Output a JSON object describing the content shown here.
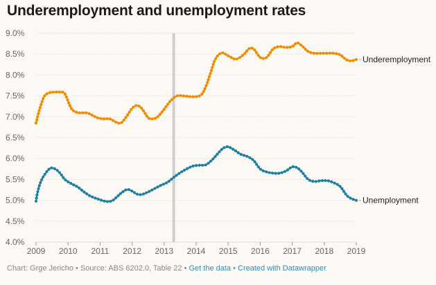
{
  "footer": {
    "prefix": "Chart: Grge Jericho • Source: ABS 6202.0, Table 22 • ",
    "get_data": "Get the data",
    "separator": " • ",
    "created_with": "Created with Datawrapper"
  },
  "colors": {
    "underemployment": "#f08c00",
    "unemployment": "#1d7fa3",
    "grid": "#dcdcdc",
    "highlight": "#cfcfcf"
  },
  "chart_data": {
    "type": "line",
    "title": "Underemployment and unemployment rates",
    "xlabel": "",
    "ylabel": "",
    "xlim": [
      2009.0,
      2019.0
    ],
    "ylim": [
      4.0,
      9.0
    ],
    "y_ticks": [
      "9.0%",
      "8.5%",
      "8.0%",
      "7.5%",
      "7.0%",
      "6.5%",
      "6.0%",
      "5.5%",
      "5.0%",
      "4.5%",
      "4.0%"
    ],
    "x_ticks": [
      "2009",
      "2010",
      "2011",
      "2012",
      "2013",
      "2014",
      "2015",
      "2016",
      "2017",
      "2018",
      "2019"
    ],
    "highlight_x": 2013.3,
    "grid": true,
    "series": [
      {
        "name": "Underemployment",
        "x": [
          2009.0,
          2009.1,
          2009.25,
          2009.4,
          2009.55,
          2009.75,
          2009.9,
          2010.1,
          2010.3,
          2010.6,
          2010.9,
          2011.1,
          2011.3,
          2011.5,
          2011.65,
          2011.8,
          2012.0,
          2012.15,
          2012.3,
          2012.5,
          2012.65,
          2012.8,
          2013.0,
          2013.2,
          2013.4,
          2013.6,
          2013.9,
          2014.15,
          2014.3,
          2014.45,
          2014.6,
          2014.8,
          2015.0,
          2015.25,
          2015.5,
          2015.65,
          2015.8,
          2016.0,
          2016.2,
          2016.4,
          2016.6,
          2016.8,
          2017.0,
          2017.15,
          2017.3,
          2017.5,
          2017.7,
          2017.9,
          2018.1,
          2018.3,
          2018.5,
          2018.7,
          2018.85,
          2019.0
        ],
        "values": [
          6.85,
          7.15,
          7.48,
          7.57,
          7.59,
          7.59,
          7.55,
          7.2,
          7.1,
          7.09,
          6.98,
          6.95,
          6.95,
          6.87,
          6.85,
          6.98,
          7.2,
          7.27,
          7.2,
          6.98,
          6.95,
          7.0,
          7.18,
          7.38,
          7.5,
          7.5,
          7.48,
          7.52,
          7.72,
          8.05,
          8.38,
          8.53,
          8.46,
          8.38,
          8.5,
          8.63,
          8.62,
          8.42,
          8.42,
          8.62,
          8.68,
          8.66,
          8.68,
          8.77,
          8.7,
          8.56,
          8.52,
          8.52,
          8.52,
          8.52,
          8.48,
          8.36,
          8.34,
          8.37
        ]
      },
      {
        "name": "Unemployment",
        "x": [
          2009.0,
          2009.05,
          2009.15,
          2009.3,
          2009.45,
          2009.6,
          2009.75,
          2009.9,
          2010.1,
          2010.3,
          2010.5,
          2010.7,
          2010.9,
          2011.1,
          2011.25,
          2011.4,
          2011.55,
          2011.7,
          2011.85,
          2012.0,
          2012.15,
          2012.3,
          2012.5,
          2012.7,
          2012.9,
          2013.1,
          2013.3,
          2013.5,
          2013.7,
          2013.9,
          2014.1,
          2014.3,
          2014.5,
          2014.7,
          2014.85,
          2015.0,
          2015.2,
          2015.4,
          2015.6,
          2015.8,
          2016.0,
          2016.2,
          2016.4,
          2016.6,
          2016.8,
          2017.0,
          2017.15,
          2017.3,
          2017.5,
          2017.7,
          2017.9,
          2018.1,
          2018.3,
          2018.5,
          2018.7,
          2018.85,
          2019.0
        ],
        "values": [
          4.98,
          5.2,
          5.45,
          5.65,
          5.77,
          5.75,
          5.65,
          5.5,
          5.4,
          5.32,
          5.2,
          5.1,
          5.04,
          4.99,
          4.97,
          5.0,
          5.1,
          5.2,
          5.26,
          5.22,
          5.15,
          5.14,
          5.2,
          5.28,
          5.36,
          5.43,
          5.55,
          5.66,
          5.75,
          5.82,
          5.84,
          5.85,
          5.97,
          6.14,
          6.25,
          6.28,
          6.2,
          6.1,
          6.05,
          5.95,
          5.75,
          5.68,
          5.65,
          5.65,
          5.7,
          5.8,
          5.78,
          5.68,
          5.5,
          5.45,
          5.47,
          5.47,
          5.42,
          5.33,
          5.12,
          5.04,
          5.0
        ]
      }
    ]
  }
}
